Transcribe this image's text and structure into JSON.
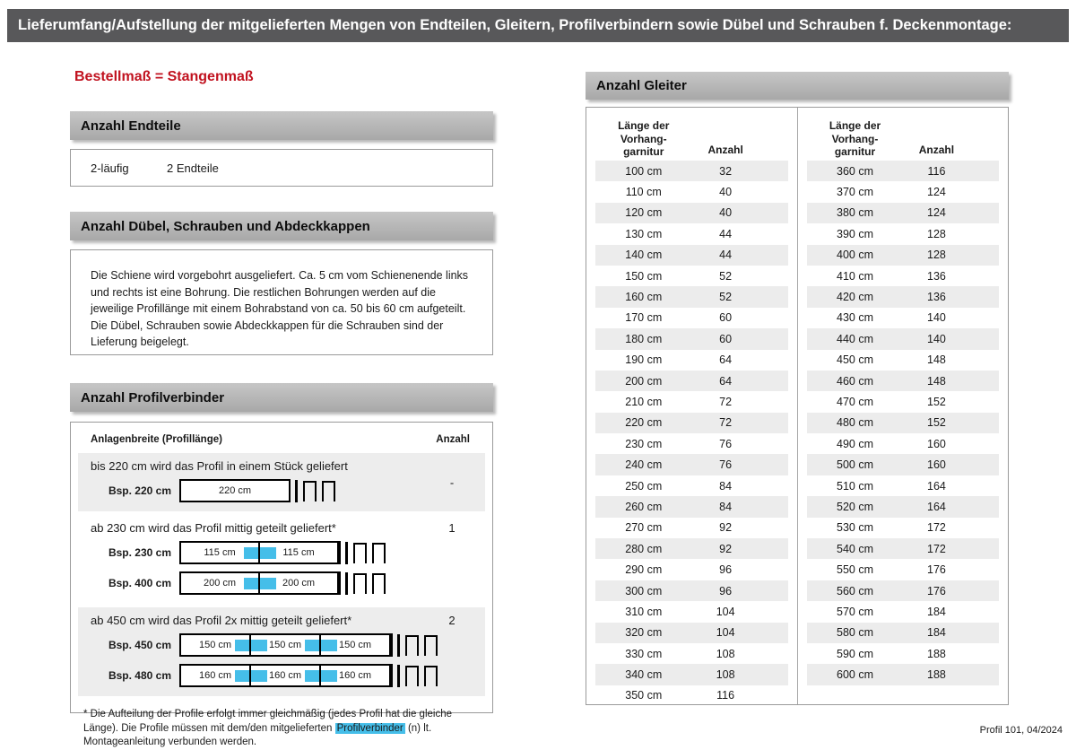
{
  "colors": {
    "topbar_gray": "#58585a",
    "accent_red": "#c1121f",
    "section_bar_gray": "#b2b2b2",
    "highlight_blue": "#45bee9",
    "row_stripe_gray": "#ececec"
  },
  "page": {
    "header_title": "Lieferumfang/Aufstellung der mitgelieferten Mengen von Endteilen, Gleitern, Profilverbindern sowie Dübel und Schrauben f. Deckenmontage:",
    "red_subtitle": "Bestellmaß = Stangenmaß",
    "footer": "Profil 101, 04/2024"
  },
  "endteile": {
    "header": "Anzahl Endteile",
    "row_label": "2-läufig",
    "row_value": "2 Endteile"
  },
  "duebel": {
    "header": "Anzahl Dübel, Schrauben und Abdeckkappen",
    "text": "Die Schiene wird vorgebohrt ausgeliefert. Ca. 5 cm vom Schienenende links und rechts ist eine Bohrung. Die restlichen Bohrungen werden auf die jeweilige Profillänge mit einem Bohrabstand von ca. 50 bis 60 cm aufgeteilt. Die Dübel, Schrauben sowie Abdeckkappen für die Schrauben sind der Lieferung beigelegt."
  },
  "profilverbinder": {
    "header": "Anzahl Profilverbinder",
    "col_label": "Anlagenbreite (Profillänge)",
    "col_anzahl": "Anzahl",
    "rows": [
      {
        "text": "bis 220 cm wird das Profil in einem Stück geliefert",
        "anzahl": "-",
        "examples": [
          {
            "label": "Bsp. 220 cm",
            "segments": [
              "220 cm"
            ]
          }
        ]
      },
      {
        "text": "ab 230 cm wird das Profil mittig geteilt geliefert*",
        "anzahl": "1",
        "examples": [
          {
            "label": "Bsp. 230 cm",
            "segments": [
              "115 cm",
              "115 cm"
            ]
          },
          {
            "label": "Bsp. 400 cm",
            "segments": [
              "200 cm",
              "200 cm"
            ]
          }
        ]
      },
      {
        "text": "ab 450 cm wird das Profil 2x mittig geteilt geliefert*",
        "anzahl": "2",
        "examples": [
          {
            "label": "Bsp. 450 cm",
            "segments": [
              "150 cm",
              "150 cm",
              "150 cm"
            ]
          },
          {
            "label": "Bsp. 480 cm",
            "segments": [
              "160 cm",
              "160 cm",
              "160 cm"
            ]
          }
        ]
      }
    ],
    "footnote_pre": "* Die Aufteilung der Profile erfolgt immer gleichmäßig (jedes Profil hat die gleiche Länge). Die Profile müssen mit dem/den mitgelieferten ",
    "footnote_highlight": "Profilverbinder",
    "footnote_post": " (n) lt. Montageanleitung verbunden werden."
  },
  "gleiter": {
    "header": "Anzahl Gleiter",
    "col_length_lines": [
      "Länge der",
      "Vorhang-",
      "garnitur"
    ],
    "col_anzahl": "Anzahl",
    "left_rows": [
      {
        "length": "100 cm",
        "count": "32"
      },
      {
        "length": "110 cm",
        "count": "40"
      },
      {
        "length": "120 cm",
        "count": "40"
      },
      {
        "length": "130 cm",
        "count": "44"
      },
      {
        "length": "140 cm",
        "count": "44"
      },
      {
        "length": "150 cm",
        "count": "52"
      },
      {
        "length": "160 cm",
        "count": "52"
      },
      {
        "length": "170 cm",
        "count": "60"
      },
      {
        "length": "180 cm",
        "count": "60"
      },
      {
        "length": "190 cm",
        "count": "64"
      },
      {
        "length": "200 cm",
        "count": "64"
      },
      {
        "length": "210 cm",
        "count": "72"
      },
      {
        "length": "220 cm",
        "count": "72"
      },
      {
        "length": "230 cm",
        "count": "76"
      },
      {
        "length": "240 cm",
        "count": "76"
      },
      {
        "length": "250 cm",
        "count": "84"
      },
      {
        "length": "260 cm",
        "count": "84"
      },
      {
        "length": "270 cm",
        "count": "92"
      },
      {
        "length": "280 cm",
        "count": "92"
      },
      {
        "length": "290 cm",
        "count": "96"
      },
      {
        "length": "300 cm",
        "count": "96"
      },
      {
        "length": "310 cm",
        "count": "104"
      },
      {
        "length": "320 cm",
        "count": "104"
      },
      {
        "length": "330 cm",
        "count": "108"
      },
      {
        "length": "340 cm",
        "count": "108"
      },
      {
        "length": "350 cm",
        "count": "116"
      }
    ],
    "right_rows": [
      {
        "length": "360 cm",
        "count": "116"
      },
      {
        "length": "370 cm",
        "count": "124"
      },
      {
        "length": "380 cm",
        "count": "124"
      },
      {
        "length": "390 cm",
        "count": "128"
      },
      {
        "length": "400 cm",
        "count": "128"
      },
      {
        "length": "410 cm",
        "count": "136"
      },
      {
        "length": "420 cm",
        "count": "136"
      },
      {
        "length": "430 cm",
        "count": "140"
      },
      {
        "length": "440 cm",
        "count": "140"
      },
      {
        "length": "450 cm",
        "count": "148"
      },
      {
        "length": "460 cm",
        "count": "148"
      },
      {
        "length": "470 cm",
        "count": "152"
      },
      {
        "length": "480 cm",
        "count": "152"
      },
      {
        "length": "490 cm",
        "count": "160"
      },
      {
        "length": "500 cm",
        "count": "160"
      },
      {
        "length": "510 cm",
        "count": "164"
      },
      {
        "length": "520 cm",
        "count": "164"
      },
      {
        "length": "530 cm",
        "count": "172"
      },
      {
        "length": "540 cm",
        "count": "172"
      },
      {
        "length": "550 cm",
        "count": "176"
      },
      {
        "length": "560 cm",
        "count": "176"
      },
      {
        "length": "570 cm",
        "count": "184"
      },
      {
        "length": "580 cm",
        "count": "184"
      },
      {
        "length": "590 cm",
        "count": "188"
      },
      {
        "length": "600 cm",
        "count": "188"
      }
    ]
  }
}
